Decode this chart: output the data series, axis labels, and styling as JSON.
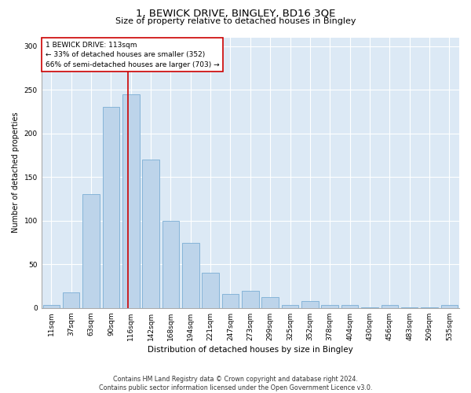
{
  "title1": "1, BEWICK DRIVE, BINGLEY, BD16 3QE",
  "title2": "Size of property relative to detached houses in Bingley",
  "xlabel": "Distribution of detached houses by size in Bingley",
  "ylabel": "Number of detached properties",
  "footer1": "Contains HM Land Registry data © Crown copyright and database right 2024.",
  "footer2": "Contains public sector information licensed under the Open Government Licence v3.0.",
  "bar_labels": [
    "11sqm",
    "37sqm",
    "63sqm",
    "90sqm",
    "116sqm",
    "142sqm",
    "168sqm",
    "194sqm",
    "221sqm",
    "247sqm",
    "273sqm",
    "299sqm",
    "325sqm",
    "352sqm",
    "378sqm",
    "404sqm",
    "430sqm",
    "456sqm",
    "483sqm",
    "509sqm",
    "535sqm"
  ],
  "bar_values": [
    3,
    18,
    130,
    230,
    245,
    170,
    100,
    75,
    40,
    16,
    20,
    12,
    3,
    8,
    3,
    3,
    1,
    3,
    1,
    1,
    3
  ],
  "bar_color": "#bdd4ea",
  "bar_edgecolor": "#7aadd4",
  "background_color": "#dce9f5",
  "annotation_text": "1 BEWICK DRIVE: 113sqm\n← 33% of detached houses are smaller (352)\n66% of semi-detached houses are larger (703) →",
  "vline_color": "#cc0000",
  "vline_pos": 3.87,
  "box_facecolor": "#ffffff",
  "box_edgecolor": "#cc0000",
  "ylim": [
    0,
    310
  ],
  "yticks": [
    0,
    50,
    100,
    150,
    200,
    250,
    300
  ],
  "title1_fontsize": 9.5,
  "title2_fontsize": 8.0,
  "xlabel_fontsize": 7.5,
  "ylabel_fontsize": 7.0,
  "tick_fontsize": 6.5,
  "annot_fontsize": 6.5,
  "footer_fontsize": 5.8
}
